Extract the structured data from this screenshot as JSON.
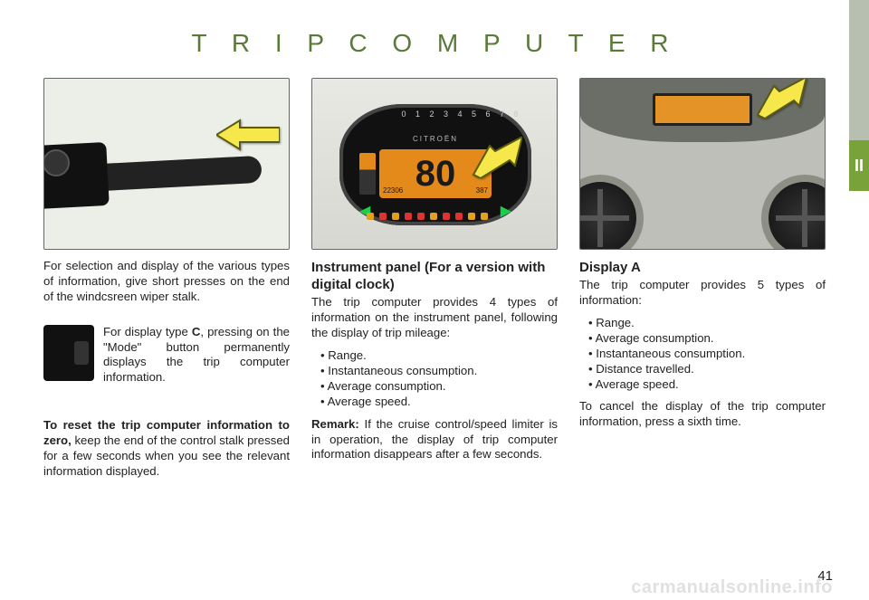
{
  "title": "T R I P   C O M P U T E R",
  "section_tab": "II",
  "page_number": "41",
  "watermark": "carmanualsonline.info",
  "colors": {
    "title_color": "#5a7a3a",
    "tab_green": "#7aa23a",
    "tab_gray": "#b7c0b0",
    "lcd_bg": "#e38a1a",
    "arrow_fill": "#f6e84a",
    "arrow_stroke": "#5a5a10"
  },
  "col1": {
    "intro": "For selection and display of the various types of information, give short presses on the end of the windcsreen wiper stalk.",
    "mode_text_prefix": "For display type ",
    "mode_type_letter": "C",
    "mode_text_suffix": ", pressing on the \"Mode\" button permanently displays the trip computer information.",
    "reset_lead": "To reset the trip computer information to zero,",
    "reset_text": " keep the end of the control stalk pressed for a few seconds when you see the relevant information displayed."
  },
  "col2": {
    "heading": "Instrument panel (For a version with digital clock)",
    "intro": "The trip computer provides 4 types of information on the instrument panel, following the display of trip mileage:",
    "items": [
      "Range.",
      "Instantaneous consumption.",
      "Average consumption.",
      "Average speed."
    ],
    "remark_label": "Remark:",
    "remark_text": " If the cruise control/speed limiter is in operation, the display of trip computer information disappears after a few seconds.",
    "panel": {
      "tach_numbers": "0  1  2  3  4  5  6  7  8",
      "brand": "CITROËN",
      "speed": "80",
      "odo_left": "22306",
      "odo_right": "387",
      "warning_colors": [
        "#e0a020",
        "#d33",
        "#e0a020",
        "#d33",
        "#d33",
        "#e0a020",
        "#d33",
        "#d33",
        "#e0a020",
        "#e0a020"
      ]
    }
  },
  "col3": {
    "heading": "Display A",
    "intro": "The trip computer provides 5 types of information:",
    "items": [
      "Range.",
      "Average consumption.",
      "Instantaneous consumption.",
      "Distance travelled.",
      "Average speed."
    ],
    "cancel": "To cancel the display of the trip computer information, press a sixth time."
  }
}
